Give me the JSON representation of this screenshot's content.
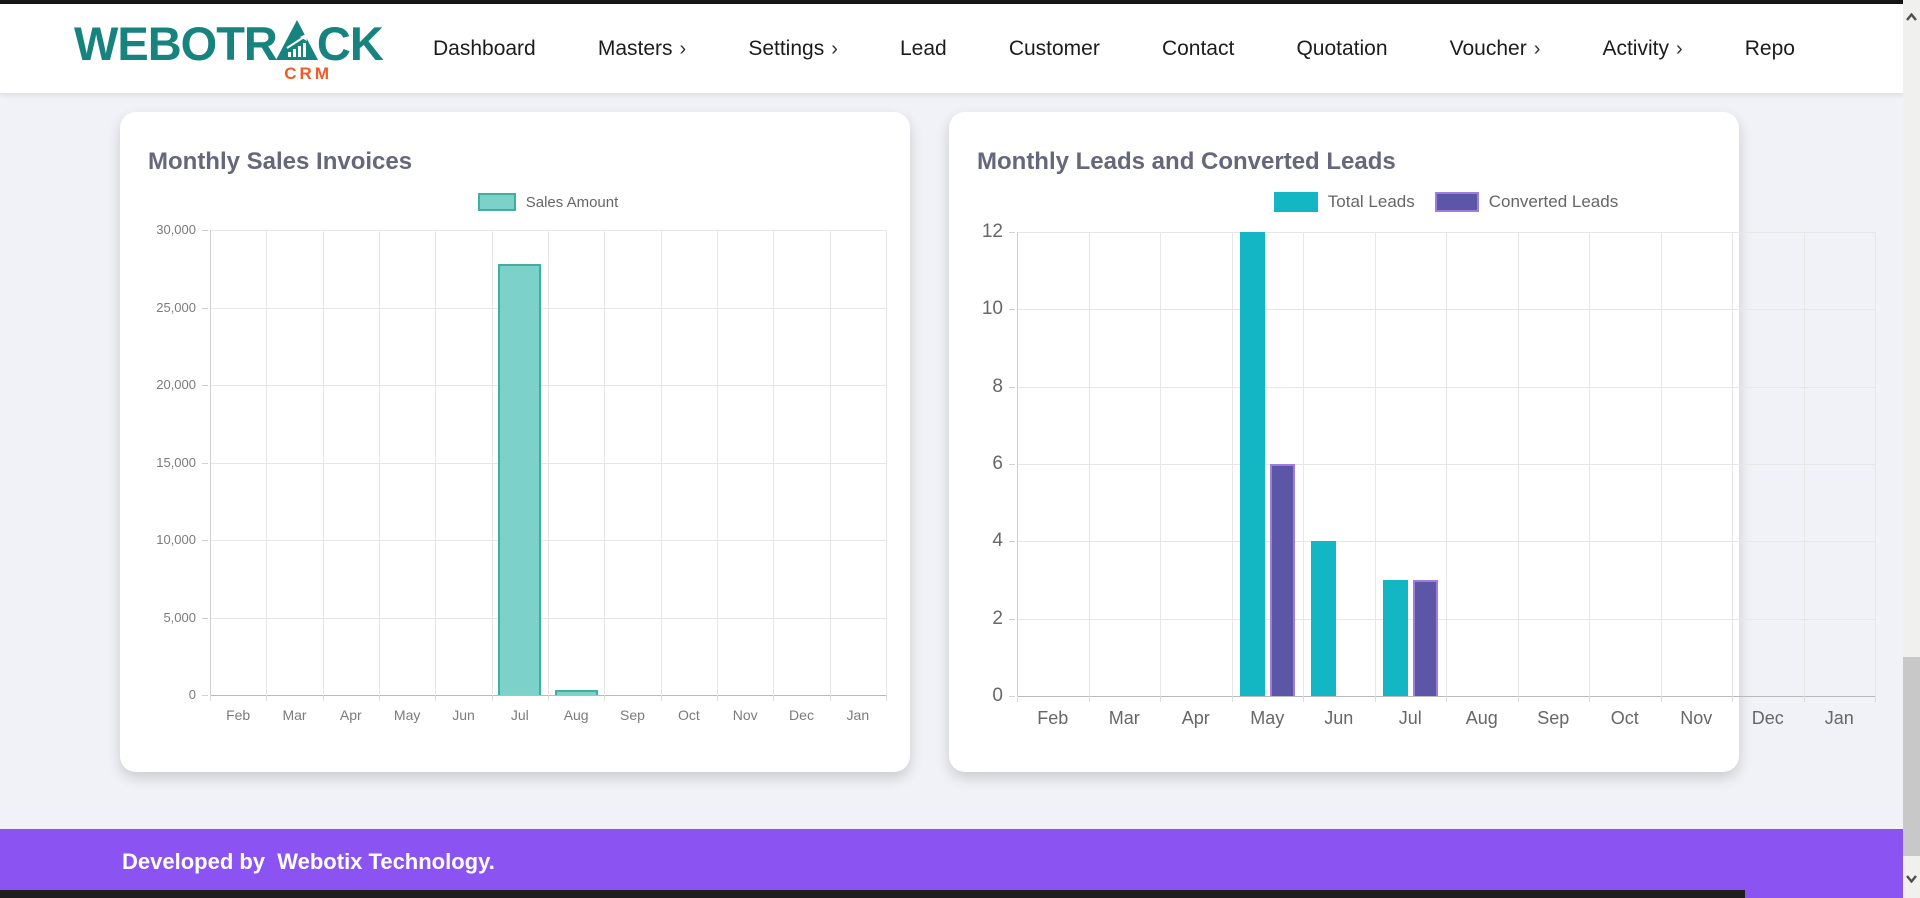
{
  "header": {
    "nav": [
      {
        "label": "Dashboard",
        "submenu": false
      },
      {
        "label": "Masters",
        "submenu": true
      },
      {
        "label": "Settings",
        "submenu": true
      },
      {
        "label": "Lead",
        "submenu": false
      },
      {
        "label": "Customer",
        "submenu": false
      },
      {
        "label": "Contact",
        "submenu": false
      },
      {
        "label": "Quotation",
        "submenu": false
      },
      {
        "label": "Voucher",
        "submenu": true
      },
      {
        "label": "Activity",
        "submenu": true
      },
      {
        "label": "Repo",
        "submenu": false
      }
    ],
    "submenu_arrow": "›"
  },
  "logo": {
    "word_start": "WEBOTR",
    "word_end": "CK",
    "tagline": "CRM",
    "teal": "#17837E",
    "orange": "#F05A28"
  },
  "footer": {
    "text": "Developed by  Webotix Technology.",
    "bg": "#8A53F2"
  },
  "chart_data": [
    {
      "type": "bar",
      "title": "Monthly Sales Invoices",
      "categories": [
        "Feb",
        "Mar",
        "Apr",
        "May",
        "Jun",
        "Jul",
        "Aug",
        "Sep",
        "Oct",
        "Nov",
        "Dec",
        "Jan"
      ],
      "series": [
        {
          "name": "Sales Amount",
          "values": [
            0,
            0,
            0,
            0,
            0,
            27800,
            300,
            0,
            0,
            0,
            0,
            0
          ],
          "fill": "#7CD2C8",
          "border": "#3FAFA3"
        }
      ],
      "ylim": [
        0,
        30000
      ],
      "ystep": 5000,
      "y_ticks": [
        "0",
        "5,000",
        "10,000",
        "15,000",
        "20,000",
        "25,000",
        "30,000"
      ],
      "grid": true,
      "legend_position": "top"
    },
    {
      "type": "bar",
      "title": "Monthly Leads and Converted Leads",
      "categories": [
        "Feb",
        "Mar",
        "Apr",
        "May",
        "Jun",
        "Jul",
        "Aug",
        "Sep",
        "Oct",
        "Nov",
        "Dec",
        "Jan"
      ],
      "series": [
        {
          "name": "Total Leads",
          "values": [
            0,
            0,
            0,
            12,
            4,
            3,
            0,
            0,
            0,
            0,
            0,
            0
          ],
          "fill": "#12B7C3",
          "border": "#12B7C3"
        },
        {
          "name": "Converted Leads",
          "values": [
            0,
            0,
            0,
            6,
            0,
            3,
            0,
            0,
            0,
            0,
            0,
            0
          ],
          "fill": "#5B57A6",
          "border": "#9E7CE0"
        }
      ],
      "ylim": [
        0,
        12
      ],
      "ystep": 2,
      "y_ticks": [
        "0",
        "2",
        "4",
        "6",
        "8",
        "10",
        "12"
      ],
      "grid": true,
      "legend_position": "top"
    }
  ]
}
